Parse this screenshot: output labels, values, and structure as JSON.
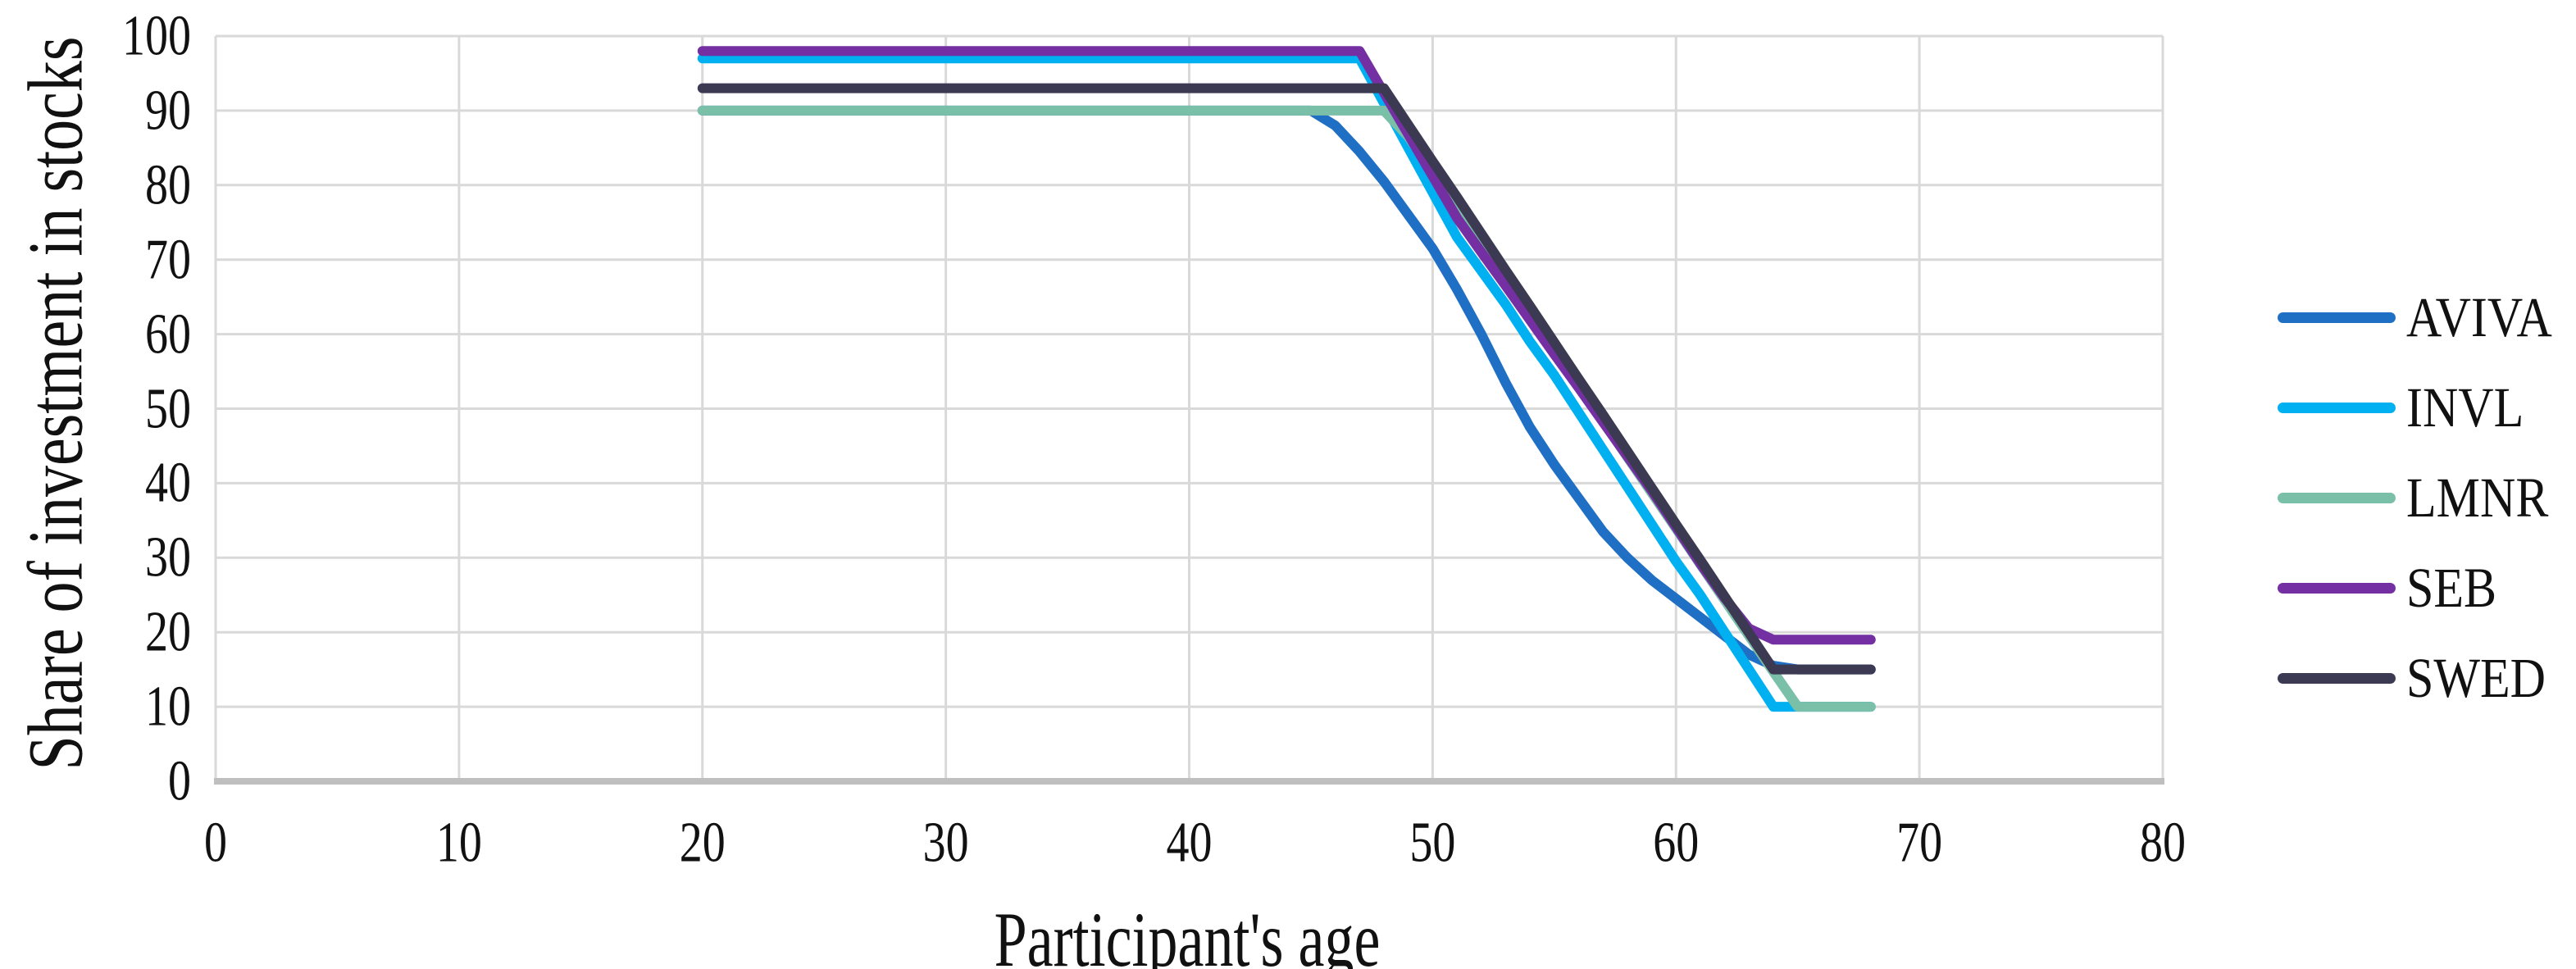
{
  "chart_data": {
    "type": "line",
    "title": "",
    "xlabel": "Participant's age",
    "ylabel": "Share of investment in stocks",
    "xlim": [
      0,
      80
    ],
    "ylim": [
      0,
      100
    ],
    "x_ticks": [
      0,
      10,
      20,
      30,
      40,
      50,
      60,
      70,
      80
    ],
    "y_ticks": [
      0,
      10,
      20,
      30,
      40,
      50,
      60,
      70,
      80,
      90,
      100
    ],
    "grid": true,
    "grid_color": "#d9d9d9",
    "axis_line_color": "#bfbfbf",
    "tick_color": "#111111",
    "legend_position": "right",
    "series": [
      {
        "name": "AVIVA",
        "color": "#1f6fc4",
        "points": [
          [
            20,
            90
          ],
          [
            45,
            90
          ],
          [
            46,
            88
          ],
          [
            47,
            84.5
          ],
          [
            48,
            80.5
          ],
          [
            49,
            76
          ],
          [
            50,
            71.5
          ],
          [
            51,
            66
          ],
          [
            52,
            60
          ],
          [
            53,
            53.5
          ],
          [
            54,
            47.5
          ],
          [
            55,
            42.5
          ],
          [
            56,
            38
          ],
          [
            57,
            33.5
          ],
          [
            58,
            30
          ],
          [
            59,
            27
          ],
          [
            60,
            24.5
          ],
          [
            61,
            22
          ],
          [
            62,
            19.5
          ],
          [
            63,
            17
          ],
          [
            64,
            15.5
          ],
          [
            65,
            15
          ],
          [
            68,
            15
          ]
        ]
      },
      {
        "name": "INVL",
        "color": "#00b0f0",
        "points": [
          [
            20,
            97
          ],
          [
            47,
            97
          ],
          [
            48,
            91
          ],
          [
            49,
            85
          ],
          [
            50,
            79
          ],
          [
            51,
            73
          ],
          [
            52,
            68.5
          ],
          [
            53,
            64
          ],
          [
            54,
            59
          ],
          [
            55,
            54.5
          ],
          [
            56,
            49.5
          ],
          [
            57,
            44.5
          ],
          [
            58,
            39.5
          ],
          [
            59,
            34.5
          ],
          [
            60,
            29.5
          ],
          [
            61,
            25
          ],
          [
            62,
            20
          ],
          [
            63,
            15
          ],
          [
            64,
            10
          ],
          [
            68,
            10
          ]
        ]
      },
      {
        "name": "LMNR",
        "color": "#7abfa8",
        "points": [
          [
            20,
            90
          ],
          [
            48,
            90
          ],
          [
            49,
            86.5
          ],
          [
            50,
            81.9
          ],
          [
            51,
            77.1
          ],
          [
            52,
            72.3
          ],
          [
            53,
            67.5
          ],
          [
            54,
            62.7
          ],
          [
            55,
            57.9
          ],
          [
            56,
            53.1
          ],
          [
            57,
            48.3
          ],
          [
            58,
            43.5
          ],
          [
            59,
            38.7
          ],
          [
            60,
            33.9
          ],
          [
            61,
            29.1
          ],
          [
            62,
            24.3
          ],
          [
            63,
            19.5
          ],
          [
            64,
            14.7
          ],
          [
            65,
            10
          ],
          [
            68,
            10
          ]
        ]
      },
      {
        "name": "SEB",
        "color": "#7430a3",
        "points": [
          [
            20,
            98
          ],
          [
            47,
            98
          ],
          [
            48,
            92.4
          ],
          [
            49,
            86.8
          ],
          [
            50,
            81.2
          ],
          [
            51,
            75.6
          ],
          [
            52,
            71
          ],
          [
            53,
            66.5
          ],
          [
            54,
            61.9
          ],
          [
            55,
            57.3
          ],
          [
            56,
            52.8
          ],
          [
            57,
            48.2
          ],
          [
            58,
            43.6
          ],
          [
            59,
            39
          ],
          [
            60,
            34.1
          ],
          [
            61,
            29.2
          ],
          [
            62,
            24.6
          ],
          [
            63,
            20.5
          ],
          [
            64,
            19
          ],
          [
            68,
            19
          ]
        ]
      },
      {
        "name": "SWED",
        "color": "#3b3a52",
        "points": [
          [
            20,
            93
          ],
          [
            48,
            93
          ],
          [
            49,
            88.1
          ],
          [
            50,
            83.2
          ],
          [
            51,
            78.4
          ],
          [
            52,
            73.5
          ],
          [
            53,
            68.6
          ],
          [
            54,
            63.8
          ],
          [
            55,
            58.9
          ],
          [
            56,
            54
          ],
          [
            57,
            49.2
          ],
          [
            58,
            44.3
          ],
          [
            59,
            39.4
          ],
          [
            60,
            34.5
          ],
          [
            61,
            29.7
          ],
          [
            62,
            24.8
          ],
          [
            63,
            19.9
          ],
          [
            64,
            15
          ],
          [
            68,
            15
          ]
        ]
      }
    ]
  }
}
